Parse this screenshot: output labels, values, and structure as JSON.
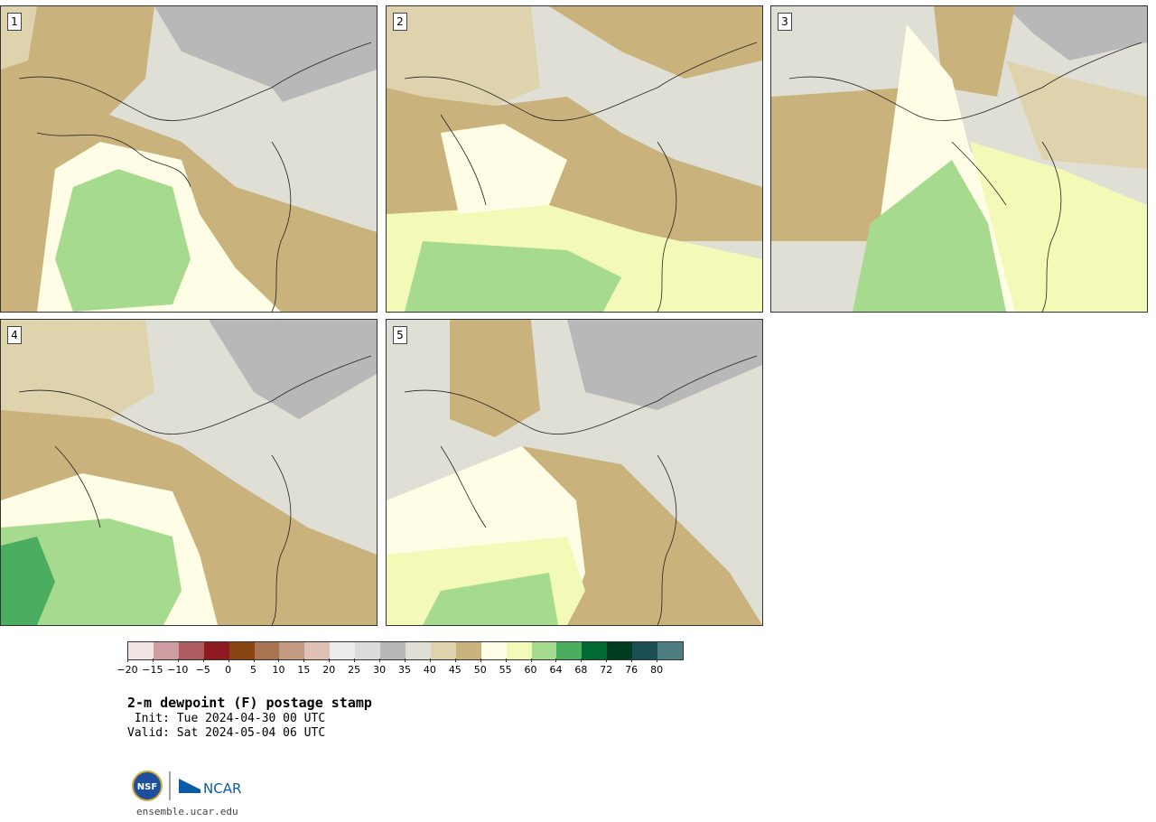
{
  "panels": [
    {
      "label": "1"
    },
    {
      "label": "2"
    },
    {
      "label": "3"
    },
    {
      "label": "4"
    },
    {
      "label": "5"
    }
  ],
  "colorbar": {
    "colors": [
      "#f2e4e4",
      "#cf9ea2",
      "#ad5c62",
      "#8e1a22",
      "#8a4515",
      "#aa7352",
      "#c39b83",
      "#dfc1b4",
      "#ececec",
      "#dcdcdc",
      "#b8b8b8",
      "#e0dfd6",
      "#dfd3ad",
      "#c9b27b",
      "#fffde5",
      "#f3f9b6",
      "#a6db8f",
      "#4aad5f",
      "#006a32",
      "#003c1f",
      "#1b4f55",
      "#4e7d82"
    ],
    "tick_labels": [
      "−20",
      "−15",
      "−10",
      "−5",
      "0",
      "5",
      "10",
      "15",
      "20",
      "25",
      "30",
      "35",
      "40",
      "45",
      "50",
      "55",
      "60",
      "64",
      "68",
      "72",
      "76",
      "80"
    ]
  },
  "title": "2-m dewpoint (F) postage stamp",
  "init": " Init: Tue 2024-04-30 00 UTC",
  "valid": "Valid: Sat 2024-05-04 06 UTC",
  "logos": {
    "nsf": "NSF",
    "ncar": "NCAR"
  },
  "url": "ensemble.ucar.edu"
}
